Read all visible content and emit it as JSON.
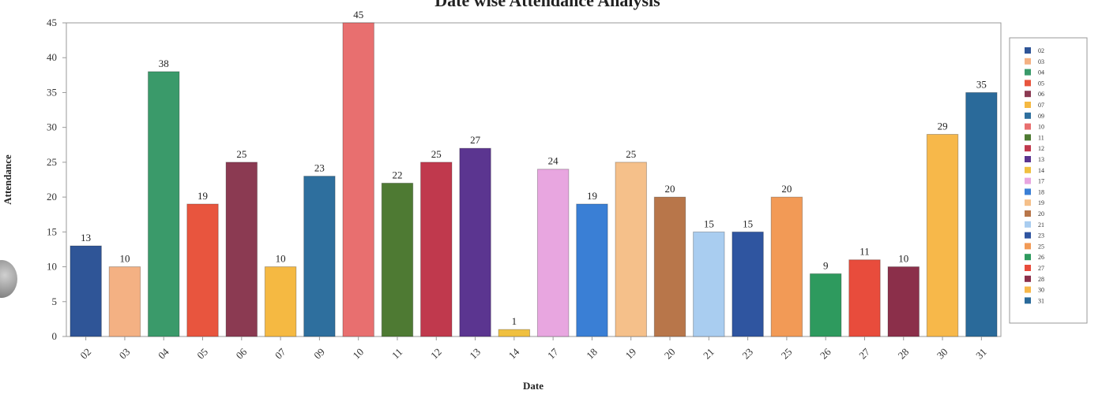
{
  "chart_data": {
    "type": "bar",
    "title": "Date wise Attendance Analysis",
    "xlabel": "Date",
    "ylabel": "Attendance",
    "ylim": [
      0,
      45
    ],
    "yticks": [
      0,
      5,
      10,
      15,
      20,
      25,
      30,
      35,
      40,
      45
    ],
    "grid": false,
    "legend_position": "right",
    "categories": [
      "02",
      "03",
      "04",
      "05",
      "06",
      "07",
      "09",
      "10",
      "11",
      "12",
      "13",
      "14",
      "17",
      "18",
      "19",
      "20",
      "21",
      "23",
      "25",
      "26",
      "27",
      "28",
      "30",
      "31"
    ],
    "values": [
      13,
      10,
      38,
      19,
      25,
      10,
      23,
      45,
      22,
      25,
      27,
      1,
      24,
      19,
      25,
      20,
      15,
      15,
      20,
      9,
      11,
      10,
      29,
      35
    ],
    "colors": [
      "#2f5597",
      "#f4b183",
      "#3a9a6a",
      "#e8553e",
      "#8b3a52",
      "#f5b942",
      "#2e6f9e",
      "#e86f6f",
      "#4e7a33",
      "#c0394d",
      "#5b3590",
      "#f0c040",
      "#e8a6e0",
      "#3a7fd5",
      "#f5c08a",
      "#b8764a",
      "#a9cdf0",
      "#2f55a0",
      "#f29a56",
      "#2e9a5e",
      "#e84c3c",
      "#8b2f4a",
      "#f7b84a",
      "#2a6a9a"
    ]
  }
}
